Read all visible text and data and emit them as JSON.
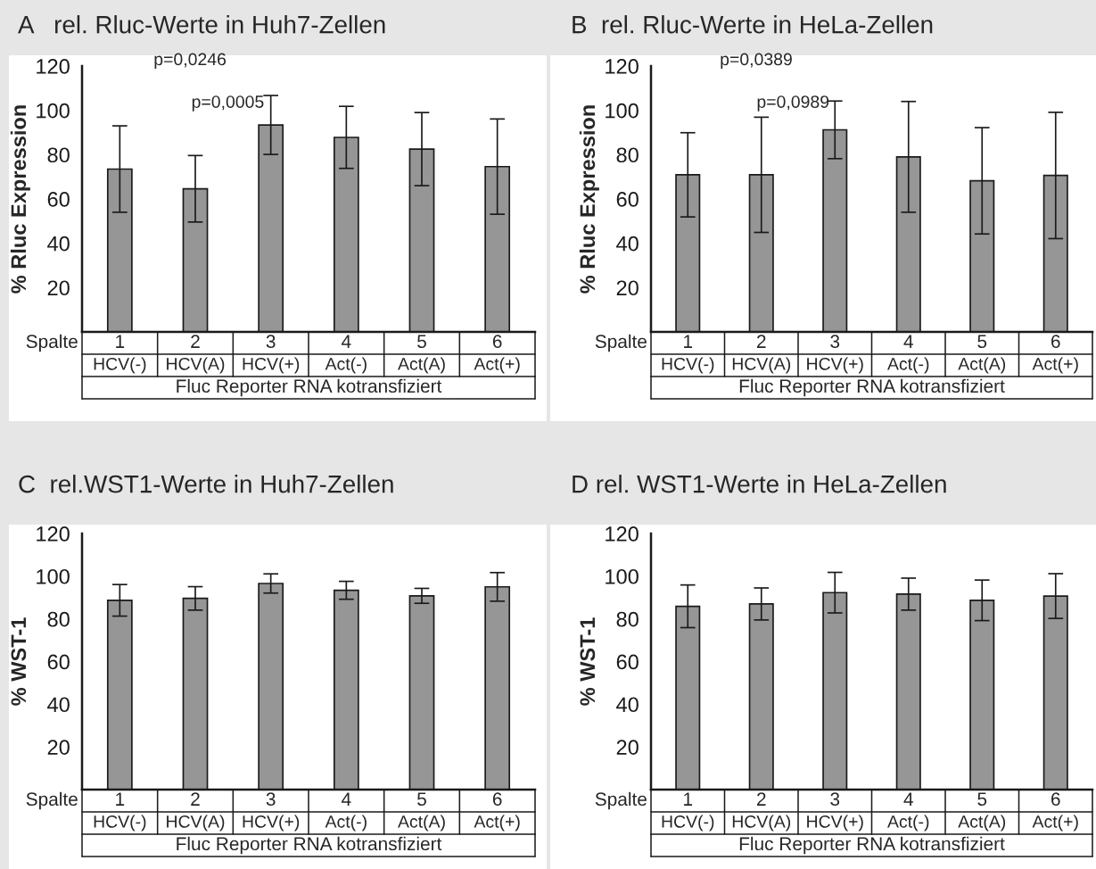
{
  "chart_data": [
    {
      "type": "bar",
      "title": "A   rel. Rluc-Werte in Huh7-Zellen",
      "ylabel": "% Rluc Expression",
      "xlabel": "Fluc Reporter RNA kotransfiziert",
      "categories": [
        "1",
        "2",
        "3",
        "4",
        "5",
        "6"
      ],
      "values": [
        73.5,
        64.6,
        93.4,
        87.8,
        82.5,
        74.6
      ],
      "errors": [
        19.5,
        15,
        13.3,
        14,
        16.5,
        21.5
      ],
      "color": "#969696",
      "ylim": [
        0,
        120
      ],
      "yticks": [
        20,
        40,
        60,
        80,
        100,
        120
      ],
      "annotations": [
        "Spalte",
        "HCV(-)",
        "HCV(A)",
        "HCV(+)",
        "Act(-)",
        "Act(A)",
        "Act(+)",
        "p=0,0246",
        "p=0,0005"
      ]
    },
    {
      "type": "bar",
      "title": "B  rel. Rluc-Werte in HeLa-Zellen",
      "ylabel": "% Rluc Expression",
      "xlabel": "Fluc Reporter RNA kotransfiziert",
      "categories": [
        "1",
        "2",
        "3",
        "4",
        "5",
        "6"
      ],
      "values": [
        70.9,
        70.9,
        91.2,
        79,
        68.2,
        70.6
      ],
      "errors": [
        19,
        26,
        13,
        25,
        24,
        28.5
      ],
      "color": "#969696",
      "ylim": [
        0,
        120
      ],
      "yticks": [
        20,
        40,
        60,
        80,
        100,
        120
      ],
      "annotations": [
        "Spalte",
        "HCV(-)",
        "HCV(A)",
        "HCV(+)",
        "Act(-)",
        "Act(A)",
        "Act(+)",
        "p=0,0389",
        "p=0,0989"
      ]
    },
    {
      "type": "bar",
      "title": "C  rel.WST1-Werte in Huh7-Zellen",
      "ylabel": "% WST-1",
      "xlabel": "Fluc Reporter RNA kotransfiziert",
      "categories": [
        "1",
        "2",
        "3",
        "4",
        "5",
        "6"
      ],
      "values": [
        88.7,
        89.6,
        96.6,
        93.4,
        90.8,
        95
      ],
      "errors": [
        7.4,
        5.5,
        4.5,
        4.2,
        3.5,
        6.7
      ],
      "color": "#969696",
      "ylim": [
        0,
        120
      ],
      "yticks": [
        20,
        40,
        60,
        80,
        100,
        120
      ],
      "annotations": [
        "Spalte",
        "HCV(-)",
        "HCV(A)",
        "HCV(+)",
        "Act(-)",
        "Act(A)",
        "Act(+)"
      ]
    },
    {
      "type": "bar",
      "title": "D rel. WST1-Werte in HeLa-Zellen",
      "ylabel": "% WST-1",
      "xlabel": "Fluc Reporter RNA kotransfiziert",
      "categories": [
        "1",
        "2",
        "3",
        "4",
        "5",
        "6"
      ],
      "values": [
        85.9,
        87,
        92.3,
        91.6,
        88.7,
        90.7
      ],
      "errors": [
        10,
        7.5,
        9.5,
        7.5,
        9.5,
        10.5
      ],
      "color": "#969696",
      "ylim": [
        0,
        120
      ],
      "yticks": [
        20,
        40,
        60,
        80,
        100,
        120
      ],
      "annotations": [
        "Spalte",
        "HCV(-)",
        "HCV(A)",
        "HCV(+)",
        "Act(-)",
        "Act(A)",
        "Act(+)"
      ]
    }
  ]
}
